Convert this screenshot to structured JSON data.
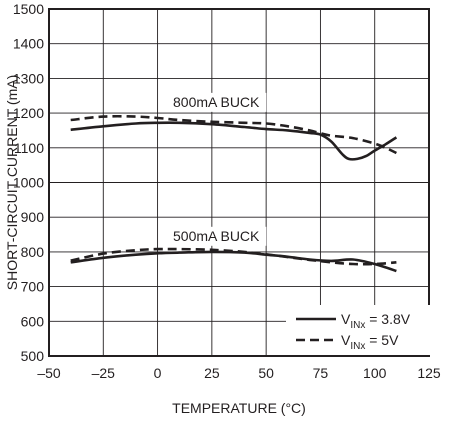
{
  "chart_data": {
    "type": "line",
    "title": "",
    "xlabel": "TEMPERATURE (°C)",
    "ylabel": "SHORT-CIRCUIT CURRENT (mA)",
    "xlim": [
      -50,
      125
    ],
    "ylim": [
      500,
      1500
    ],
    "xticks": [
      -50,
      -25,
      0,
      25,
      50,
      75,
      100,
      125
    ],
    "xtick_labels": [
      "–50",
      "–25",
      "0",
      "25",
      "50",
      "75",
      "100",
      "125"
    ],
    "yticks": [
      500,
      600,
      700,
      800,
      900,
      1000,
      1100,
      1200,
      1300,
      1400,
      1500
    ],
    "ytick_labels": [
      "500",
      "600",
      "700",
      "800",
      "900",
      "1000",
      "1100",
      "1200",
      "1300",
      "1400",
      "1500"
    ],
    "grid": true,
    "legend_position": "bottom-right",
    "annotations": [
      {
        "text": "800mA BUCK",
        "x": 27,
        "y": 1218
      },
      {
        "text": "500mA BUCK",
        "x": 27,
        "y": 832
      }
    ],
    "series": [
      {
        "group": "800mA BUCK",
        "name": "3.8V",
        "style": "solid",
        "x": [
          -40,
          -25,
          -10,
          0,
          10,
          25,
          40,
          50,
          60,
          70,
          75,
          80,
          85,
          88,
          92,
          96,
          100,
          105,
          110
        ],
        "y": [
          1152,
          1162,
          1170,
          1172,
          1172,
          1168,
          1160,
          1154,
          1150,
          1143,
          1138,
          1118,
          1082,
          1068,
          1068,
          1076,
          1092,
          1110,
          1130
        ]
      },
      {
        "group": "800mA BUCK",
        "name": "5V",
        "style": "dashed",
        "x": [
          -40,
          -25,
          -10,
          0,
          10,
          25,
          40,
          50,
          60,
          70,
          75,
          80,
          90,
          100,
          105,
          110
        ],
        "y": [
          1180,
          1190,
          1190,
          1186,
          1180,
          1175,
          1172,
          1170,
          1162,
          1150,
          1142,
          1135,
          1128,
          1112,
          1100,
          1085
        ]
      },
      {
        "group": "500mA BUCK",
        "name": "3.8V",
        "style": "solid",
        "x": [
          -40,
          -25,
          -10,
          0,
          10,
          25,
          40,
          50,
          60,
          70,
          80,
          90,
          100,
          110
        ],
        "y": [
          770,
          783,
          792,
          796,
          798,
          800,
          798,
          792,
          786,
          778,
          774,
          778,
          765,
          745
        ]
      },
      {
        "group": "500mA BUCK",
        "name": "5V",
        "style": "dashed",
        "x": [
          -40,
          -25,
          -10,
          0,
          10,
          25,
          40,
          50,
          60,
          70,
          80,
          90,
          100,
          110
        ],
        "y": [
          775,
          795,
          805,
          808,
          808,
          806,
          800,
          793,
          785,
          777,
          770,
          765,
          765,
          770
        ]
      }
    ]
  },
  "legend": {
    "items": [
      {
        "prefix": "V",
        "sub": "INx",
        "suffix": " = 3.8V",
        "style": "solid"
      },
      {
        "prefix": "V",
        "sub": "INx",
        "suffix": " = 5V",
        "style": "dashed"
      }
    ]
  }
}
